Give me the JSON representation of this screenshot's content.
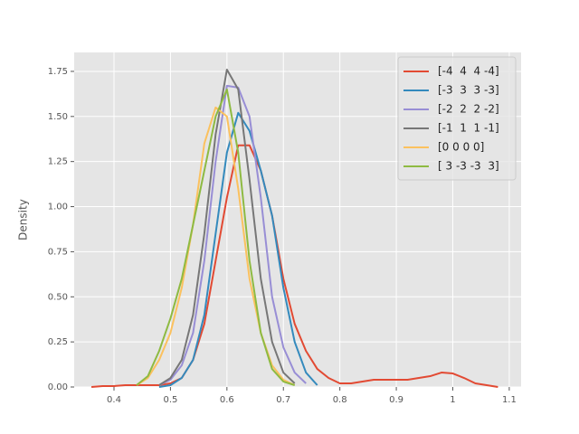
{
  "chart_data": {
    "type": "line",
    "ylabel": "Density",
    "x": [
      0.36,
      0.38,
      0.4,
      0.42,
      0.44,
      0.46,
      0.48,
      0.5,
      0.52,
      0.54,
      0.56,
      0.58,
      0.6,
      0.62,
      0.64,
      0.66,
      0.68,
      0.7,
      0.72,
      0.74,
      0.76,
      0.78,
      0.8,
      0.82,
      0.84,
      0.86,
      0.88,
      0.9,
      0.92,
      0.94,
      0.96,
      0.98,
      1.0,
      1.02,
      1.04,
      1.06,
      1.08
    ],
    "series": [
      {
        "name": "[-4  4  4 -4]",
        "color": "#E24A33",
        "values": [
          0,
          0.005,
          0.005,
          0.01,
          0.01,
          0.01,
          0.01,
          0.02,
          0.05,
          0.15,
          0.35,
          0.7,
          1.05,
          1.34,
          1.34,
          1.2,
          0.95,
          0.6,
          0.35,
          0.2,
          0.1,
          0.05,
          0.02,
          0.02,
          0.03,
          0.04,
          0.04,
          0.04,
          0.04,
          0.05,
          0.06,
          0.08,
          0.075,
          0.05,
          0.02,
          0.01,
          0
        ]
      },
      {
        "name": "[-3  3  3 -3]",
        "color": "#348ABD",
        "values": [
          null,
          null,
          null,
          null,
          null,
          null,
          0,
          0.01,
          0.05,
          0.15,
          0.4,
          0.85,
          1.3,
          1.52,
          1.42,
          1.2,
          0.95,
          0.55,
          0.25,
          0.08,
          0.01,
          null,
          null,
          null,
          null,
          null,
          null,
          null,
          null,
          null,
          null,
          null,
          null,
          null,
          null,
          null,
          null
        ]
      },
      {
        "name": "[-2  2  2 -2]",
        "color": "#988ED5",
        "values": [
          null,
          null,
          null,
          null,
          null,
          null,
          0.01,
          0.04,
          0.12,
          0.3,
          0.7,
          1.25,
          1.67,
          1.66,
          1.5,
          1.05,
          0.5,
          0.22,
          0.08,
          0.02,
          null,
          null,
          null,
          null,
          null,
          null,
          null,
          null,
          null,
          null,
          null,
          null,
          null,
          null,
          null,
          null,
          null
        ]
      },
      {
        "name": "[-1  1  1 -1]",
        "color": "#777777",
        "values": [
          null,
          null,
          null,
          null,
          null,
          null,
          0.01,
          0.05,
          0.15,
          0.4,
          0.85,
          1.4,
          1.76,
          1.65,
          1.15,
          0.6,
          0.25,
          0.08,
          0.02,
          null,
          null,
          null,
          null,
          null,
          null,
          null,
          null,
          null,
          null,
          null,
          null,
          null,
          null,
          null,
          null,
          null,
          null
        ]
      },
      {
        "name": "[0 0 0 0]",
        "color": "#FBC15E",
        "values": [
          null,
          null,
          null,
          null,
          0.01,
          0.05,
          0.15,
          0.3,
          0.55,
          0.9,
          1.35,
          1.55,
          1.5,
          1.1,
          0.6,
          0.3,
          0.12,
          0.04,
          0.01,
          null,
          null,
          null,
          null,
          null,
          null,
          null,
          null,
          null,
          null,
          null,
          null,
          null,
          null,
          null,
          null,
          null,
          null
        ]
      },
      {
        "name": "[ 3 -3 -3  3]",
        "color": "#8EBA42",
        "values": [
          null,
          null,
          null,
          null,
          0.01,
          0.06,
          0.2,
          0.38,
          0.6,
          0.9,
          1.2,
          1.5,
          1.65,
          1.3,
          0.7,
          0.3,
          0.1,
          0.03,
          0.01,
          null,
          null,
          null,
          null,
          null,
          null,
          null,
          null,
          null,
          null,
          null,
          null,
          null,
          null,
          null,
          null,
          null,
          null
        ]
      }
    ],
    "xlim": [
      0.3295,
      1.121
    ],
    "ylim": [
      0,
      1.855
    ],
    "xticks": [
      0.4,
      0.5,
      0.6,
      0.7,
      0.8,
      0.9,
      1.0,
      1.1
    ],
    "yticks": [
      {
        "value": 0,
        "label": "0.00"
      },
      {
        "value": 0.25,
        "label": "0.25"
      },
      {
        "value": 0.5,
        "label": "0.50"
      },
      {
        "value": 0.75,
        "label": "0.75"
      },
      {
        "value": 1.0,
        "label": "1.00"
      },
      {
        "value": 1.25,
        "label": "1.25"
      },
      {
        "value": 1.5,
        "label": "1.50"
      },
      {
        "value": 1.75,
        "label": "1.75"
      }
    ],
    "grid": true,
    "legend": "upper right"
  }
}
